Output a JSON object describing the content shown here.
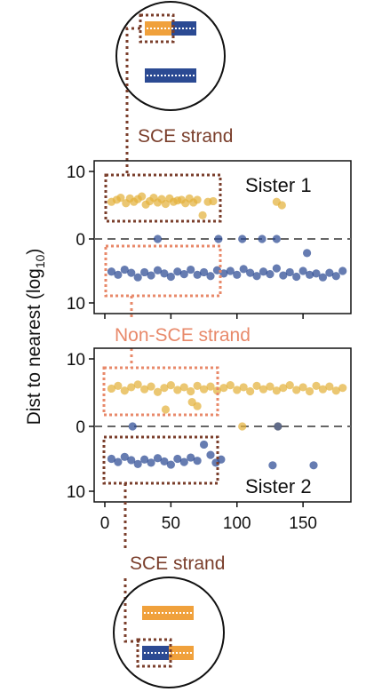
{
  "colors": {
    "gold": "#E3B23C",
    "navy": "#2B4A93",
    "brown": "#7A3E2B",
    "salmon": "#E8896A",
    "dash": "#666666",
    "strand_orange": "#F0A13C"
  },
  "icons": {
    "top": "dna-duplex-sce-top-icon",
    "bottom": "dna-duplex-sce-bottom-icon"
  },
  "labels": {
    "sce_top": "SCE strand",
    "non_sce": "Non-SCE strand",
    "sce_bottom": "SCE strand"
  },
  "y_axis_label_main": "Dist to nearest (log",
  "y_axis_label_sub": "10",
  "y_axis_label_close": ")",
  "chart_data": [
    {
      "type": "scatter",
      "title": "Sister 1",
      "ylabel": "Dist to nearest (log10)",
      "xlim": [
        -2,
        186
      ],
      "ylim": [
        -10,
        10
      ],
      "y_ticks": [
        10,
        0,
        10
      ],
      "x_ticks": [
        0,
        50,
        100,
        150
      ],
      "x_tick_labels_shown": false,
      "reference_line_y": 0,
      "series": [
        {
          "color": "gold",
          "points": [
            [
              5,
              5.5
            ],
            [
              9,
              5.8
            ],
            [
              12,
              6.1
            ],
            [
              16,
              5.3
            ],
            [
              19,
              6.0
            ],
            [
              22,
              5.5
            ],
            [
              25,
              5.9
            ],
            [
              28,
              6.3
            ],
            [
              31,
              5.1
            ],
            [
              34,
              5.6
            ],
            [
              37,
              6.1
            ],
            [
              40,
              5.4
            ],
            [
              43,
              5.9
            ],
            [
              46,
              5.2
            ],
            [
              49,
              6.0
            ],
            [
              52,
              5.5
            ],
            [
              55,
              5.7
            ],
            [
              58,
              5.8
            ],
            [
              61,
              5.3
            ],
            [
              64,
              6.0
            ],
            [
              67,
              5.4
            ],
            [
              70,
              5.8
            ],
            [
              74,
              3.5
            ],
            [
              78,
              5.5
            ],
            [
              82,
              5.6
            ],
            [
              130,
              5.5
            ],
            [
              134,
              5.0
            ]
          ]
        },
        {
          "color": "navy",
          "points": [
            [
              5,
              -5.1
            ],
            [
              10,
              -5.6
            ],
            [
              15,
              -4.8
            ],
            [
              20,
              -5.3
            ],
            [
              25,
              -6.0
            ],
            [
              30,
              -5.2
            ],
            [
              35,
              -5.7
            ],
            [
              40,
              -4.9
            ],
            [
              45,
              -5.4
            ],
            [
              50,
              -5.9
            ],
            [
              55,
              -5.1
            ],
            [
              60,
              -5.5
            ],
            [
              65,
              -4.8
            ],
            [
              70,
              -5.6
            ],
            [
              75,
              -5.2
            ],
            [
              80,
              -5.8
            ],
            [
              85,
              -4.9
            ],
            [
              90,
              -5.4
            ],
            [
              95,
              -5.0
            ],
            [
              100,
              -5.6
            ],
            [
              105,
              -4.7
            ],
            [
              110,
              -5.3
            ],
            [
              115,
              -5.8
            ],
            [
              120,
              -5.1
            ],
            [
              125,
              -5.5
            ],
            [
              130,
              -4.6
            ],
            [
              135,
              -5.7
            ],
            [
              140,
              -5.2
            ],
            [
              145,
              -5.9
            ],
            [
              150,
              -5.0
            ],
            [
              155,
              -5.6
            ],
            [
              160,
              -5.4
            ],
            [
              165,
              -6.0
            ],
            [
              170,
              -5.3
            ],
            [
              175,
              -5.8
            ],
            [
              180,
              -5.0
            ],
            [
              40,
              0
            ],
            [
              86,
              0
            ],
            [
              104,
              0
            ],
            [
              119,
              0
            ],
            [
              130,
              0
            ],
            [
              153,
              -2.2
            ]
          ]
        }
      ]
    },
    {
      "type": "scatter",
      "title": "Sister 2",
      "xlabel": "",
      "xlim": [
        -2,
        186
      ],
      "ylim": [
        -10,
        10
      ],
      "y_ticks": [
        10,
        0,
        10
      ],
      "x_ticks": [
        0,
        50,
        100,
        150
      ],
      "reference_line_y": 0,
      "series": [
        {
          "color": "gold",
          "points": [
            [
              5,
              5.6
            ],
            [
              10,
              6.0
            ],
            [
              15,
              5.3
            ],
            [
              20,
              5.8
            ],
            [
              25,
              6.2
            ],
            [
              30,
              5.5
            ],
            [
              35,
              5.9
            ],
            [
              40,
              5.1
            ],
            [
              45,
              5.7
            ],
            [
              50,
              6.1
            ],
            [
              55,
              5.4
            ],
            [
              60,
              5.8
            ],
            [
              65,
              5.2
            ],
            [
              70,
              6.0
            ],
            [
              75,
              5.5
            ],
            [
              80,
              5.9
            ],
            [
              85,
              5.3
            ],
            [
              90,
              5.7
            ],
            [
              95,
              6.1
            ],
            [
              100,
              5.4
            ],
            [
              105,
              5.8
            ],
            [
              110,
              5.2
            ],
            [
              115,
              6.0
            ],
            [
              120,
              5.5
            ],
            [
              125,
              5.9
            ],
            [
              130,
              5.3
            ],
            [
              135,
              5.7
            ],
            [
              140,
              6.1
            ],
            [
              145,
              5.4
            ],
            [
              150,
              5.8
            ],
            [
              155,
              5.2
            ],
            [
              160,
              6.0
            ],
            [
              165,
              5.5
            ],
            [
              170,
              5.9
            ],
            [
              175,
              5.3
            ],
            [
              180,
              5.7
            ],
            [
              46,
              2.5
            ],
            [
              70,
              3.0
            ],
            [
              66,
              3.6
            ],
            [
              104,
              0
            ],
            [
              131,
              0
            ]
          ]
        },
        {
          "color": "navy",
          "points": [
            [
              5,
              -5.0
            ],
            [
              10,
              -5.5
            ],
            [
              15,
              -4.7
            ],
            [
              20,
              -5.2
            ],
            [
              25,
              -5.8
            ],
            [
              30,
              -5.1
            ],
            [
              35,
              -5.6
            ],
            [
              40,
              -4.9
            ],
            [
              45,
              -5.4
            ],
            [
              50,
              -5.9
            ],
            [
              55,
              -5.0
            ],
            [
              60,
              -5.5
            ],
            [
              65,
              -4.8
            ],
            [
              70,
              -5.3
            ],
            [
              75,
              -2.8
            ],
            [
              80,
              -4.4
            ],
            [
              84,
              -5.6
            ],
            [
              88,
              -5.1
            ],
            [
              21,
              0
            ],
            [
              127,
              -6.0
            ],
            [
              158,
              -6.0
            ],
            [
              131,
              0
            ]
          ]
        }
      ]
    }
  ]
}
